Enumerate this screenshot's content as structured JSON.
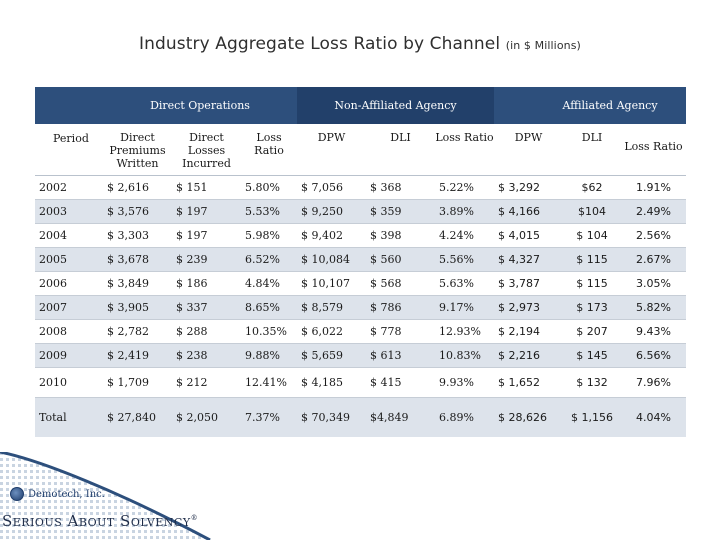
{
  "title": "Industry Aggregate Loss Ratio by Channel",
  "title_sub": "(in $ Millions)",
  "groups": {
    "direct": "Direct Operations",
    "non_affiliated": "Non-Affiliated Agency",
    "affiliated": "Affiliated Agency"
  },
  "columns": {
    "period": "Period",
    "dpw_long": "Direct Premiums Written",
    "dli_long": "Direct Losses Incurred",
    "loss_ratio": "Loss Ratio",
    "dpw": "DPW",
    "dli": "DLI"
  },
  "rows": [
    {
      "period": "2002",
      "d_dpw": "$ 2,616",
      "d_dli": "$ 151",
      "d_lr": "5.80%",
      "n_dpw": "$ 7,056",
      "n_dli": "$ 368",
      "n_lr": "5.22%",
      "a_dpw": "$ 3,292",
      "a_dli": "$62",
      "a_lr": "1.91%"
    },
    {
      "period": "2003",
      "d_dpw": "$ 3,576",
      "d_dli": "$ 197",
      "d_lr": "5.53%",
      "n_dpw": "$ 9,250",
      "n_dli": "$ 359",
      "n_lr": "3.89%",
      "a_dpw": "$ 4,166",
      "a_dli": "$104",
      "a_lr": "2.49%"
    },
    {
      "period": "2004",
      "d_dpw": "$ 3,303",
      "d_dli": "$ 197",
      "d_lr": "5.98%",
      "n_dpw": "$ 9,402",
      "n_dli": "$ 398",
      "n_lr": "4.24%",
      "a_dpw": "$ 4,015",
      "a_dli": "$ 104",
      "a_lr": "2.56%"
    },
    {
      "period": "2005",
      "d_dpw": "$ 3,678",
      "d_dli": "$ 239",
      "d_lr": "6.52%",
      "n_dpw": "$ 10,084",
      "n_dli": "$ 560",
      "n_lr": "5.56%",
      "a_dpw": "$ 4,327",
      "a_dli": "$ 115",
      "a_lr": "2.67%"
    },
    {
      "period": "2006",
      "d_dpw": "$ 3,849",
      "d_dli": "$ 186",
      "d_lr": "4.84%",
      "n_dpw": "$ 10,107",
      "n_dli": "$ 568",
      "n_lr": "5.63%",
      "a_dpw": "$ 3,787",
      "a_dli": "$ 115",
      "a_lr": "3.05%"
    },
    {
      "period": "2007",
      "d_dpw": "$ 3,905",
      "d_dli": "$ 337",
      "d_lr": "8.65%",
      "n_dpw": "$ 8,579",
      "n_dli": "$ 786",
      "n_lr": "9.17%",
      "a_dpw": "$ 2,973",
      "a_dli": "$ 173",
      "a_lr": "5.82%"
    },
    {
      "period": "2008",
      "d_dpw": "$ 2,782",
      "d_dli": "$ 288",
      "d_lr": "10.35%",
      "n_dpw": "$ 6,022",
      "n_dli": "$ 778",
      "n_lr": "12.93%",
      "a_dpw": "$ 2,194",
      "a_dli": "$ 207",
      "a_lr": "9.43%"
    },
    {
      "period": "2009",
      "d_dpw": "$ 2,419",
      "d_dli": "$ 238",
      "d_lr": "9.88%",
      "n_dpw": "$ 5,659",
      "n_dli": "$ 613",
      "n_lr": "10.83%",
      "a_dpw": "$ 2,216",
      "a_dli": "$ 145",
      "a_lr": "6.56%"
    },
    {
      "period": "2010",
      "d_dpw": "$ 1,709",
      "d_dli": "$ 212",
      "d_lr": "12.41%",
      "n_dpw": "$ 4,185",
      "n_dli": "$ 415",
      "n_lr": "9.93%",
      "a_dpw": "$ 1,652",
      "a_dli": "$ 132",
      "a_lr": "7.96%"
    },
    {
      "period": "Total",
      "d_dpw": "$ 27,840",
      "d_dli": "$ 2,050",
      "d_lr": "7.37%",
      "n_dpw": "$ 70,349",
      "n_dli": "$4,849",
      "n_lr": "6.89%",
      "a_dpw": "$ 28,626",
      "a_dli": "$ 1,156",
      "a_lr": "4.04%"
    }
  ],
  "footer": {
    "company": "Demotech, Inc.",
    "tagline": "Serious About Solvency",
    "tagline_mark": "®"
  },
  "colors": {
    "header_blue": "#2d4f7c",
    "row_alt": "#dde3eb"
  }
}
